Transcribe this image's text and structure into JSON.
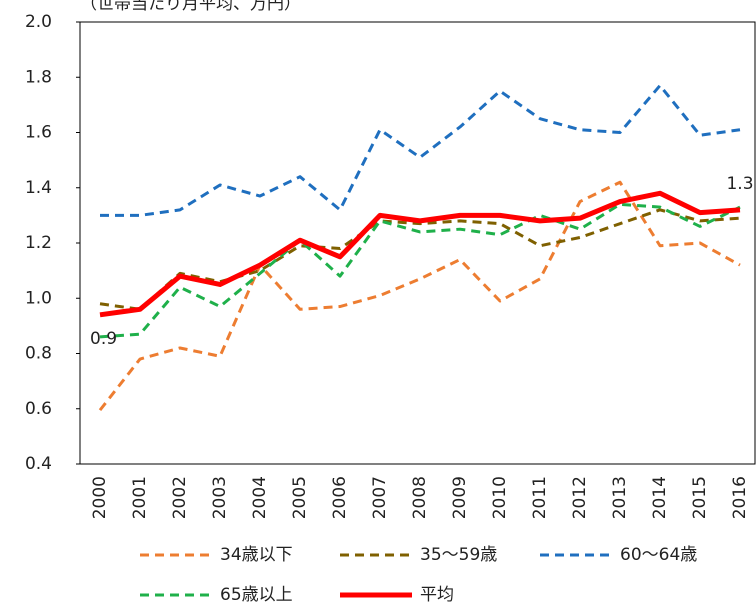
{
  "chart_data": {
    "type": "line",
    "title": "（世帯当たり月平均、万円）",
    "categories": [
      "2000",
      "2001",
      "2002",
      "2003",
      "2004",
      "2005",
      "2006",
      "2007",
      "2008",
      "2009",
      "2010",
      "2011",
      "2012",
      "2013",
      "2014",
      "2015",
      "2016"
    ],
    "series": [
      {
        "name": "34歳以下",
        "color": "#ed7d31",
        "line_style": "dashed",
        "values": [
          0.595,
          0.78,
          0.82,
          0.79,
          1.12,
          0.96,
          0.97,
          1.01,
          1.07,
          1.14,
          0.99,
          1.07,
          1.35,
          1.42,
          1.19,
          1.2,
          1.12
        ]
      },
      {
        "name": "35～59歳",
        "color": "#7f6000",
        "line_style": "dashed",
        "values": [
          0.98,
          0.96,
          1.09,
          1.06,
          1.1,
          1.19,
          1.18,
          1.28,
          1.27,
          1.28,
          1.27,
          1.19,
          1.22,
          1.27,
          1.32,
          1.28,
          1.29
        ]
      },
      {
        "name": "60～64歳",
        "color": "#1f6fbf",
        "line_style": "dashed",
        "values": [
          1.3,
          1.3,
          1.32,
          1.41,
          1.37,
          1.44,
          1.32,
          1.61,
          1.51,
          1.62,
          1.75,
          1.65,
          1.61,
          1.6,
          1.77,
          1.59,
          1.61
        ]
      },
      {
        "name": "65歳以上",
        "color": "#1fb04a",
        "line_style": "dashed",
        "values": [
          0.86,
          0.87,
          1.04,
          0.97,
          1.09,
          1.21,
          1.08,
          1.28,
          1.24,
          1.25,
          1.23,
          1.3,
          1.25,
          1.34,
          1.33,
          1.26,
          1.33
        ]
      },
      {
        "name": "平均",
        "color": "#ff0000",
        "line_style": "solid",
        "values": [
          0.94,
          0.96,
          1.08,
          1.05,
          1.12,
          1.21,
          1.15,
          1.3,
          1.28,
          1.3,
          1.3,
          1.28,
          1.29,
          1.35,
          1.38,
          1.31,
          1.32
        ],
        "value_labels": [
          "0.9",
          null,
          null,
          null,
          null,
          null,
          null,
          null,
          null,
          null,
          null,
          null,
          null,
          null,
          null,
          null,
          "1.3"
        ]
      }
    ],
    "ylim": [
      0.4,
      2.0
    ],
    "yticks": [
      0.4,
      0.6,
      0.8,
      {
        "value": 1.0,
        "label": "1.0"
      },
      1.2,
      1.4,
      1.6,
      1.8,
      {
        "value": 2.0,
        "label": "2.0"
      }
    ]
  }
}
